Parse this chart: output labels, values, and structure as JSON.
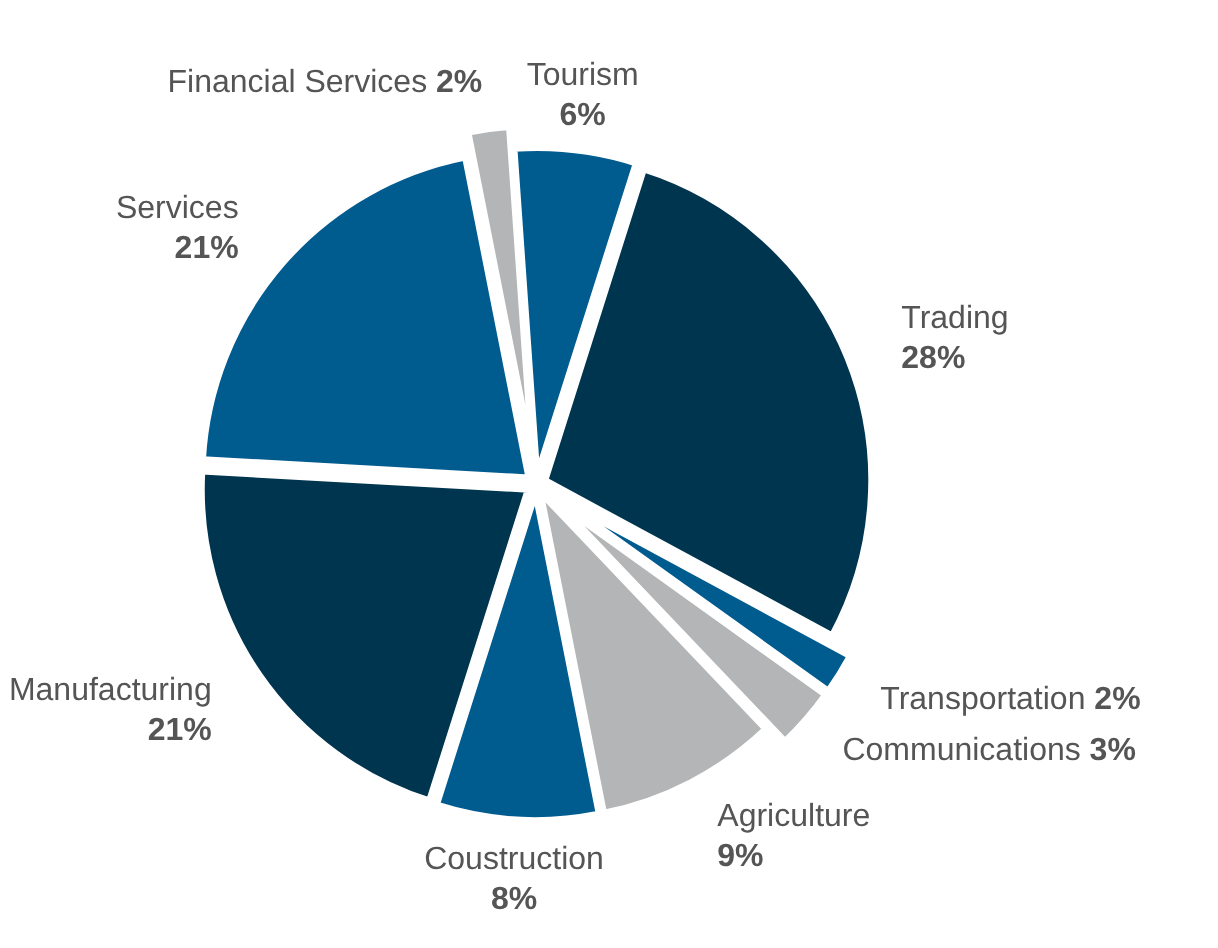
{
  "chart_data": {
    "type": "pie",
    "categories": [
      "Tourism",
      "Trading",
      "Transportation",
      "Communications",
      "Agriculture",
      "Coustruction",
      "Manufacturing",
      "Services",
      "Financial Services"
    ],
    "values": [
      6,
      28,
      2,
      3,
      9,
      8,
      21,
      21,
      2
    ],
    "value_labels": [
      "6%",
      "28%",
      "2%",
      "3%",
      "9%",
      "8%",
      "21%",
      "21%",
      "2%"
    ],
    "colors": [
      "#005b8f",
      "#00354f",
      "#005b8f",
      "#b3b5b6",
      "#b3b5b6",
      "#005b8f",
      "#00354f",
      "#005b8f",
      "#b3b5b6"
    ]
  }
}
